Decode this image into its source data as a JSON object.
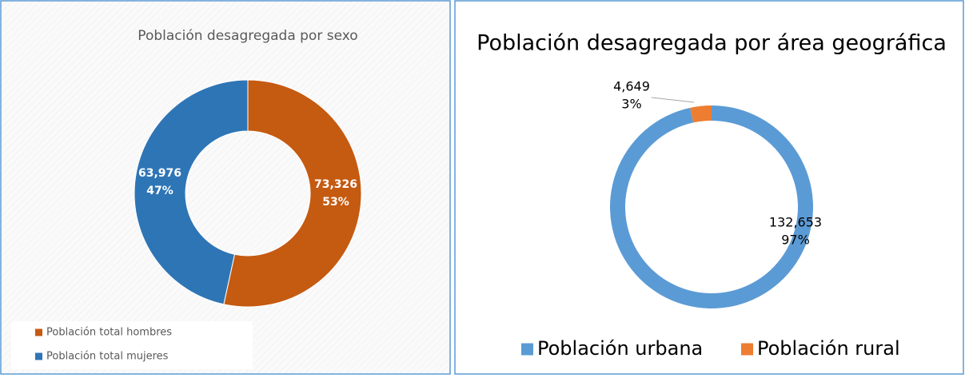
{
  "chart_data": [
    {
      "type": "donut",
      "title": "Población desagregada por sexo",
      "categories": [
        "Población total hombres",
        "Población total mujeres"
      ],
      "values": [
        73326,
        63976
      ],
      "value_labels": [
        "73,326",
        "63,976"
      ],
      "percent_labels": [
        "53%",
        "47%"
      ],
      "colors": [
        "#c55a11",
        "#2e75b6"
      ],
      "legend": "bottom-left"
    },
    {
      "type": "donut",
      "title": "Población desagregada por área geográfica",
      "categories": [
        "Población urbana",
        "Población rural"
      ],
      "values": [
        132653,
        4649
      ],
      "value_labels": [
        "132,653",
        "4,649"
      ],
      "percent_labels": [
        "97%",
        "3%"
      ],
      "colors": [
        "#5b9bd5",
        "#ed7d31"
      ],
      "legend": "bottom"
    }
  ]
}
